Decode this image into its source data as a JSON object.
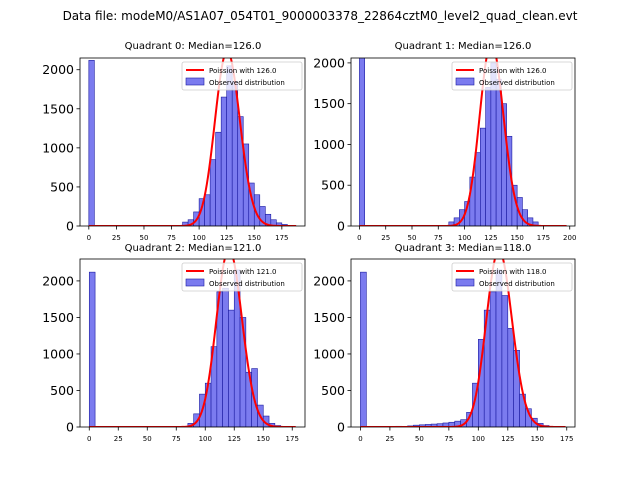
{
  "suptitle": "Data file: modeM0/AS1A07_054T01_9000003378_22864cztM0_level2_quad_clean.evt",
  "colors": {
    "bar_fill": "#7b7bef",
    "bar_edge": "#1a1aa0",
    "fit_line": "#ff0000"
  },
  "chart_data": [
    {
      "type": "bar",
      "title": "Quadrant 0: Median=126.0",
      "legend": [
        "Poission with 126.0",
        "Observed distribution"
      ],
      "legend_position": "top-right",
      "xlim": [
        -8,
        196
      ],
      "ylim": [
        0,
        2150
      ],
      "xticks": [
        0,
        25,
        50,
        75,
        100,
        125,
        150,
        175
      ],
      "yticks": [
        0,
        500,
        1000,
        1500,
        2000
      ],
      "bin_width": 5,
      "bins": [
        [
          0,
          2120
        ],
        [
          85,
          50
        ],
        [
          90,
          80
        ],
        [
          95,
          180
        ],
        [
          100,
          350
        ],
        [
          105,
          400
        ],
        [
          110,
          850
        ],
        [
          115,
          1200
        ],
        [
          120,
          1650
        ],
        [
          125,
          2050
        ],
        [
          130,
          1850
        ],
        [
          135,
          1400
        ],
        [
          140,
          1050
        ],
        [
          145,
          550
        ],
        [
          150,
          400
        ],
        [
          155,
          250
        ],
        [
          160,
          150
        ],
        [
          165,
          80
        ],
        [
          170,
          40
        ],
        [
          175,
          20
        ]
      ],
      "mean": 126.0
    },
    {
      "type": "bar",
      "title": "Quadrant 1: Median=126.0",
      "legend": [
        "Poission with 126.0",
        "Observed distribution"
      ],
      "legend_position": "top-right",
      "xlim": [
        -8,
        205
      ],
      "ylim": [
        0,
        2060
      ],
      "xticks": [
        0,
        25,
        50,
        75,
        100,
        125,
        150,
        175,
        200
      ],
      "yticks": [
        0,
        500,
        1000,
        1500,
        2000
      ],
      "bin_width": 5,
      "bins": [
        [
          0,
          2120
        ],
        [
          85,
          50
        ],
        [
          90,
          100
        ],
        [
          95,
          200
        ],
        [
          100,
          300
        ],
        [
          105,
          600
        ],
        [
          110,
          900
        ],
        [
          115,
          1200
        ],
        [
          120,
          1700
        ],
        [
          125,
          2000
        ],
        [
          130,
          1800
        ],
        [
          135,
          1500
        ],
        [
          140,
          1100
        ],
        [
          145,
          500
        ],
        [
          150,
          350
        ],
        [
          155,
          200
        ],
        [
          160,
          100
        ],
        [
          165,
          50
        ]
      ],
      "mean": 126.0
    },
    {
      "type": "bar",
      "title": "Quadrant 2: Median=121.0",
      "legend": [
        "Poission with 121.0",
        "Observed distribution"
      ],
      "legend_position": "top-right",
      "xlim": [
        -8,
        186
      ],
      "ylim": [
        0,
        2300
      ],
      "xticks": [
        0,
        25,
        50,
        75,
        100,
        125,
        150,
        175
      ],
      "yticks": [
        0,
        500,
        1000,
        1500,
        2000
      ],
      "bin_width": 5,
      "bins": [
        [
          0,
          2120
        ],
        [
          85,
          50
        ],
        [
          90,
          180
        ],
        [
          95,
          450
        ],
        [
          100,
          600
        ],
        [
          105,
          1100
        ],
        [
          110,
          1850
        ],
        [
          115,
          1900
        ],
        [
          120,
          1600
        ],
        [
          125,
          2150
        ],
        [
          130,
          1500
        ],
        [
          135,
          750
        ],
        [
          140,
          800
        ],
        [
          145,
          300
        ],
        [
          150,
          150
        ],
        [
          155,
          50
        ],
        [
          160,
          20
        ]
      ],
      "mean": 121.0
    },
    {
      "type": "bar",
      "title": "Quadrant 3: Median=118.0",
      "legend": [
        "Poission with 118.0",
        "Observed distribution"
      ],
      "legend_position": "top-right",
      "xlim": [
        -8,
        182
      ],
      "ylim": [
        0,
        2300
      ],
      "xticks": [
        0,
        25,
        50,
        75,
        100,
        125,
        150,
        175
      ],
      "yticks": [
        0,
        500,
        1000,
        1500,
        2000
      ],
      "bin_width": 5,
      "bins": [
        [
          0,
          2120
        ],
        [
          30,
          10
        ],
        [
          40,
          15
        ],
        [
          45,
          25
        ],
        [
          50,
          30
        ],
        [
          55,
          35
        ],
        [
          60,
          40
        ],
        [
          65,
          45
        ],
        [
          70,
          55
        ],
        [
          75,
          65
        ],
        [
          80,
          80
        ],
        [
          85,
          100
        ],
        [
          90,
          200
        ],
        [
          95,
          600
        ],
        [
          100,
          1200
        ],
        [
          105,
          1600
        ],
        [
          110,
          1850
        ],
        [
          115,
          2150
        ],
        [
          120,
          1800
        ],
        [
          125,
          1350
        ],
        [
          130,
          1050
        ],
        [
          135,
          450
        ],
        [
          140,
          250
        ],
        [
          145,
          120
        ],
        [
          150,
          50
        ],
        [
          155,
          20
        ]
      ],
      "mean": 118.0
    }
  ]
}
